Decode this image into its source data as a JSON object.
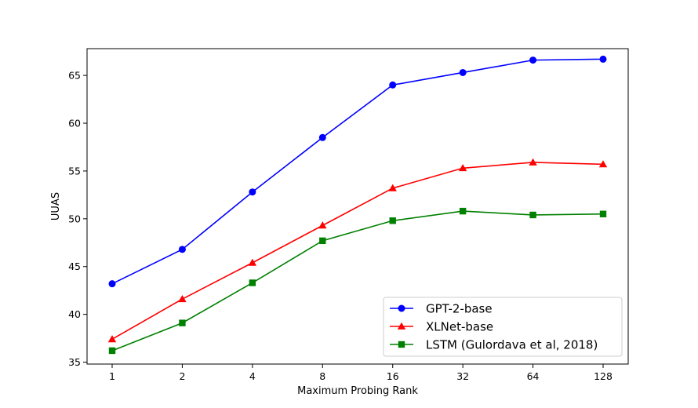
{
  "chart_data": {
    "type": "line",
    "title": "",
    "xlabel": "Maximum Probing Rank",
    "ylabel": "UUAS",
    "categories": [
      "1",
      "2",
      "4",
      "8",
      "16",
      "32",
      "64",
      "128"
    ],
    "x_scale": "log2",
    "ylim": [
      34.8,
      67.8
    ],
    "yticks": [
      35,
      40,
      45,
      50,
      55,
      60,
      65
    ],
    "grid": false,
    "legend_position": "lower-right",
    "series": [
      {
        "name": "GPT-2-base",
        "color": "#0000ff",
        "marker": "circle",
        "values": [
          43.2,
          46.8,
          52.8,
          58.5,
          64.0,
          65.3,
          66.6,
          66.7
        ]
      },
      {
        "name": "XLNet-base",
        "color": "#ff0000",
        "marker": "triangle",
        "values": [
          37.4,
          41.6,
          45.4,
          49.3,
          53.2,
          55.3,
          55.9,
          55.7
        ]
      },
      {
        "name": "LSTM (Gulordava et al, 2018)",
        "color": "#008000",
        "marker": "square",
        "values": [
          36.2,
          39.1,
          43.3,
          47.7,
          49.8,
          50.8,
          50.4,
          50.5
        ]
      }
    ]
  }
}
